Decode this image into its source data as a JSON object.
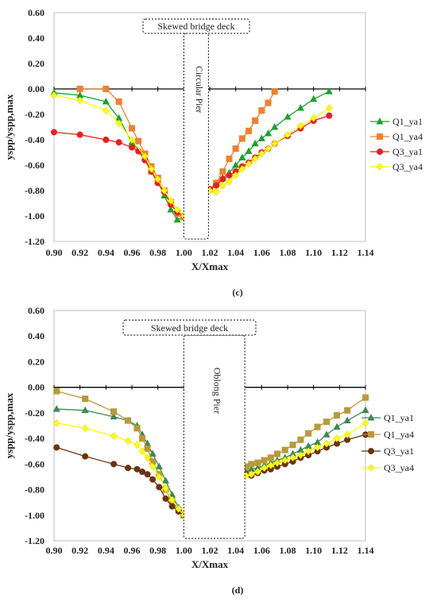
{
  "chart_data": [
    {
      "type": "line",
      "panel_label": "(c)",
      "xlabel": "X/Xmax",
      "ylabel": "yspp/yspp,max",
      "xlim": [
        0.9,
        1.14
      ],
      "ylim": [
        -1.2,
        0.6
      ],
      "xticks": [
        "0.90",
        "0.92",
        "0.94",
        "0.96",
        "0.98",
        "1.00",
        "1.02",
        "1.04",
        "1.06",
        "1.08",
        "1.10",
        "1.12",
        "1.14"
      ],
      "yticks": [
        "0.60",
        "0.40",
        "0.20",
        "0.00",
        "-0.20",
        "-0.40",
        "-0.60",
        "-0.80",
        "-1.00",
        "-1.20"
      ],
      "deck_label": "Skewed bridge deck",
      "pier_label": "Circular Pier",
      "pier_x": [
        1.0,
        1.019
      ],
      "grid": false,
      "legend_position": "right",
      "series": [
        {
          "name": "Q1_ya1",
          "color": "#1aa32c",
          "marker": "triangle",
          "x": [
            0.9,
            0.92,
            0.94,
            0.95,
            0.96,
            0.97,
            0.975,
            0.98,
            0.985,
            0.99,
            0.995,
            1.0,
            1.02,
            1.025,
            1.03,
            1.035,
            1.04,
            1.045,
            1.05,
            1.055,
            1.06,
            1.065,
            1.07,
            1.08,
            1.09,
            1.1,
            1.112
          ],
          "y": [
            -0.03,
            -0.05,
            -0.1,
            -0.23,
            -0.42,
            -0.54,
            -0.65,
            -0.73,
            -0.84,
            -0.95,
            -1.03,
            -1.01,
            -0.79,
            -0.74,
            -0.7,
            -0.66,
            -0.6,
            -0.54,
            -0.49,
            -0.43,
            -0.39,
            -0.35,
            -0.3,
            -0.22,
            -0.15,
            -0.08,
            -0.02
          ]
        },
        {
          "name": "Q1_ya4",
          "color": "#f08030",
          "marker": "square",
          "x": [
            0.92,
            0.94,
            0.95,
            0.96,
            0.965,
            0.97,
            0.975,
            0.98,
            0.985,
            0.99,
            0.995,
            1.0,
            1.02,
            1.025,
            1.03,
            1.035,
            1.04,
            1.045,
            1.05,
            1.055,
            1.06,
            1.065,
            1.07
          ],
          "y": [
            0.0,
            0.0,
            -0.1,
            -0.31,
            -0.41,
            -0.51,
            -0.61,
            -0.7,
            -0.8,
            -0.89,
            -0.98,
            -1.01,
            -0.79,
            -0.74,
            -0.65,
            -0.55,
            -0.47,
            -0.39,
            -0.33,
            -0.25,
            -0.17,
            -0.11,
            -0.02
          ]
        },
        {
          "name": "Q3_ya1",
          "color": "#e8201f",
          "marker": "circle",
          "x": [
            0.9,
            0.92,
            0.94,
            0.95,
            0.96,
            0.965,
            0.97,
            0.975,
            0.98,
            0.985,
            0.99,
            0.995,
            1.0,
            1.02,
            1.025,
            1.03,
            1.035,
            1.04,
            1.045,
            1.05,
            1.055,
            1.06,
            1.065,
            1.07,
            1.08,
            1.09,
            1.1,
            1.112
          ],
          "y": [
            -0.34,
            -0.36,
            -0.4,
            -0.42,
            -0.46,
            -0.49,
            -0.56,
            -0.65,
            -0.74,
            -0.81,
            -0.91,
            -0.97,
            -1.0,
            -0.79,
            -0.76,
            -0.71,
            -0.68,
            -0.65,
            -0.61,
            -0.58,
            -0.54,
            -0.5,
            -0.47,
            -0.43,
            -0.37,
            -0.31,
            -0.25,
            -0.21
          ]
        },
        {
          "name": "Q3_ya4",
          "color": "#ffff00",
          "marker": "diamond",
          "x": [
            0.9,
            0.92,
            0.94,
            0.95,
            0.96,
            0.97,
            0.975,
            0.98,
            0.985,
            0.99,
            0.995,
            1.0,
            1.02,
            1.025,
            1.03,
            1.035,
            1.04,
            1.045,
            1.05,
            1.055,
            1.06,
            1.065,
            1.07,
            1.08,
            1.09,
            1.1,
            1.112
          ],
          "y": [
            -0.05,
            -0.09,
            -0.17,
            -0.27,
            -0.4,
            -0.53,
            -0.63,
            -0.71,
            -0.8,
            -0.88,
            -0.95,
            -1.0,
            -0.8,
            -0.81,
            -0.76,
            -0.73,
            -0.68,
            -0.63,
            -0.59,
            -0.55,
            -0.51,
            -0.47,
            -0.43,
            -0.36,
            -0.29,
            -0.23,
            -0.15
          ]
        }
      ]
    },
    {
      "type": "line",
      "panel_label": "(d)",
      "xlabel": "X/Xmax",
      "ylabel": "yspp/yspp,max",
      "xlim": [
        0.9,
        1.14
      ],
      "ylim": [
        -1.2,
        0.6
      ],
      "xticks": [
        "0.90",
        "0.92",
        "0.94",
        "0.96",
        "0.98",
        "1.00",
        "1.02",
        "1.04",
        "1.06",
        "1.08",
        "1.10",
        "1.12",
        "1.14"
      ],
      "yticks": [
        "0.60",
        "0.40",
        "0.20",
        "0.00",
        "-0.20",
        "-0.40",
        "-0.60",
        "-0.80",
        "-1.00",
        "-1.20"
      ],
      "deck_label": "Skewed bridge deck",
      "pier_label": "Oblong Pier",
      "pier_x": [
        1.0,
        1.047
      ],
      "grid": false,
      "legend_position": "right",
      "series": [
        {
          "name": "Q1_ya1",
          "color": "#3a8a50",
          "marker": "triangle",
          "x": [
            0.902,
            0.924,
            0.946,
            0.957,
            0.964,
            0.968,
            0.972,
            0.976,
            0.981,
            0.986,
            0.991,
            0.996,
            1.0,
            1.048,
            1.052,
            1.057,
            1.062,
            1.067,
            1.072,
            1.078,
            1.084,
            1.09,
            1.096,
            1.103,
            1.11,
            1.118,
            1.126,
            1.14
          ],
          "y": [
            -0.17,
            -0.18,
            -0.23,
            -0.26,
            -0.3,
            -0.37,
            -0.44,
            -0.52,
            -0.62,
            -0.73,
            -0.84,
            -0.94,
            -1.0,
            -0.66,
            -0.64,
            -0.63,
            -0.61,
            -0.59,
            -0.57,
            -0.55,
            -0.52,
            -0.49,
            -0.46,
            -0.43,
            -0.37,
            -0.31,
            -0.26,
            -0.18
          ]
        },
        {
          "name": "Q1_ya4",
          "color": "#b89a3a",
          "marker": "square",
          "x": [
            0.902,
            0.924,
            0.946,
            0.957,
            0.964,
            0.968,
            0.972,
            0.976,
            0.981,
            0.986,
            0.991,
            0.996,
            1.0,
            1.048,
            1.052,
            1.057,
            1.062,
            1.067,
            1.072,
            1.078,
            1.084,
            1.09,
            1.096,
            1.103,
            1.11,
            1.118,
            1.126,
            1.14
          ],
          "y": [
            -0.03,
            -0.09,
            -0.19,
            -0.26,
            -0.32,
            -0.4,
            -0.48,
            -0.58,
            -0.68,
            -0.8,
            -0.89,
            -0.96,
            -1.0,
            -0.62,
            -0.6,
            -0.59,
            -0.57,
            -0.55,
            -0.52,
            -0.49,
            -0.45,
            -0.41,
            -0.36,
            -0.31,
            -0.27,
            -0.22,
            -0.18,
            -0.08
          ]
        },
        {
          "name": "Q3_ya1",
          "color": "#6b3410",
          "marker": "circle",
          "x": [
            0.902,
            0.924,
            0.946,
            0.957,
            0.964,
            0.968,
            0.972,
            0.976,
            0.981,
            0.986,
            0.991,
            0.996,
            1.0,
            1.048,
            1.052,
            1.057,
            1.062,
            1.067,
            1.072,
            1.078,
            1.084,
            1.09,
            1.096,
            1.103,
            1.11,
            1.118,
            1.126,
            1.14
          ],
          "y": [
            -0.47,
            -0.54,
            -0.6,
            -0.63,
            -0.64,
            -0.66,
            -0.68,
            -0.72,
            -0.78,
            -0.87,
            -0.93,
            -0.97,
            -1.0,
            -0.68,
            -0.69,
            -0.67,
            -0.65,
            -0.64,
            -0.62,
            -0.6,
            -0.58,
            -0.55,
            -0.53,
            -0.5,
            -0.47,
            -0.44,
            -0.41,
            -0.37
          ]
        },
        {
          "name": "Q3_ya4",
          "color": "#ffff00",
          "marker": "diamond",
          "x": [
            0.902,
            0.924,
            0.946,
            0.957,
            0.964,
            0.968,
            0.972,
            0.976,
            0.981,
            0.986,
            0.991,
            0.996,
            1.0,
            1.048,
            1.052,
            1.057,
            1.062,
            1.067,
            1.072,
            1.078,
            1.084,
            1.09,
            1.096,
            1.103,
            1.11,
            1.118,
            1.126,
            1.14
          ],
          "y": [
            -0.28,
            -0.32,
            -0.38,
            -0.42,
            -0.45,
            -0.5,
            -0.55,
            -0.62,
            -0.7,
            -0.79,
            -0.88,
            -0.95,
            -1.0,
            -0.69,
            -0.68,
            -0.66,
            -0.63,
            -0.61,
            -0.59,
            -0.57,
            -0.55,
            -0.53,
            -0.5,
            -0.47,
            -0.44,
            -0.4,
            -0.37,
            -0.28
          ]
        }
      ]
    }
  ]
}
